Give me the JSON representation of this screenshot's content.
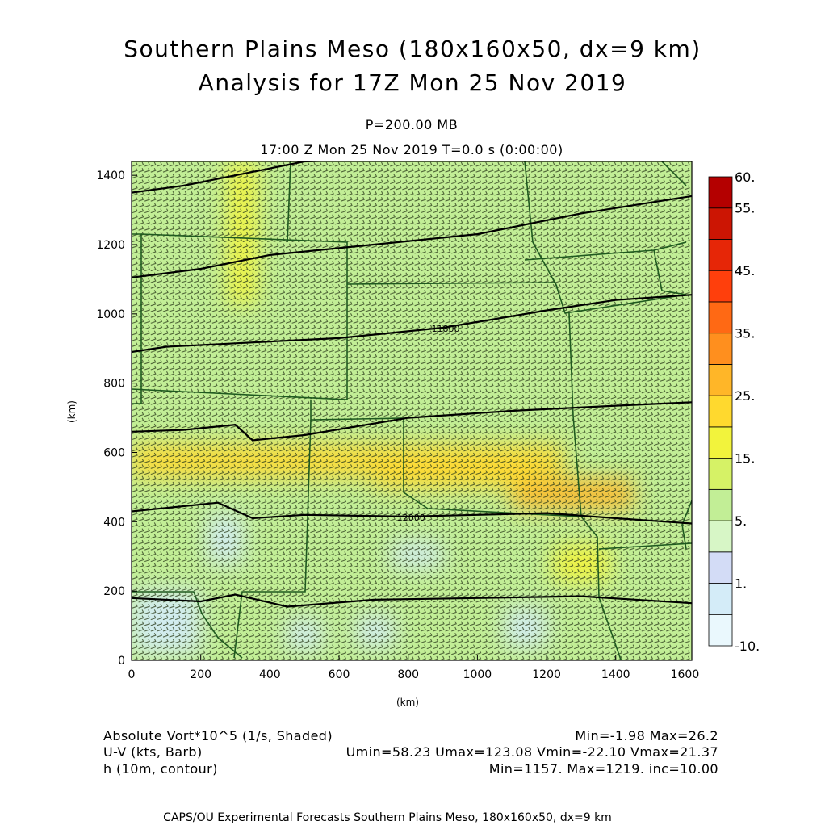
{
  "header": {
    "title_line1": "Southern Plains Meso (180x160x50, dx=9 km)",
    "title_line2": "Analysis for 17Z Mon 25 Nov 2019",
    "level": "P=200.00 MB",
    "valid_time": "17:00 Z Mon 25 Nov 2019    T=0.0 s (0:00:00)"
  },
  "chart_data": {
    "type": "heatmap",
    "xlabel": "(km)",
    "ylabel": "(km)",
    "xlim": [
      0,
      1620
    ],
    "ylim": [
      0,
      1440
    ],
    "xticks": [
      0,
      200,
      400,
      600,
      800,
      1000,
      1200,
      1400,
      1600
    ],
    "yticks": [
      0,
      200,
      400,
      600,
      800,
      1000,
      1200,
      1400
    ],
    "colorbar": {
      "levels": [
        "-10.",
        "",
        "1.",
        "",
        "5.",
        "",
        "15.",
        "",
        "25.",
        "",
        "35.",
        "",
        "45.",
        "",
        "55.",
        "60."
      ],
      "colors": [
        "#eaf8fd",
        "#d4ecf8",
        "#d3dcf6",
        "#d7f6c6",
        "#c2ee96",
        "#d6f266",
        "#f2f33c",
        "#ffd92e",
        "#ffb628",
        "#ff8f1e",
        "#ff6914",
        "#ff3f0c",
        "#e62607",
        "#cc1503",
        "#b40000"
      ]
    },
    "vorticity_field": {
      "description": "Absolute vorticity x10^5, shaded",
      "background": 9,
      "features": [
        {
          "type": "band",
          "x": [
            0,
            1250
          ],
          "y": [
            530,
            620
          ],
          "value": 24
        },
        {
          "type": "band",
          "x": [
            1100,
            1450
          ],
          "y": [
            440,
            520
          ],
          "value": 26
        },
        {
          "type": "band",
          "x": [
            700,
            1150
          ],
          "y": [
            500,
            560
          ],
          "value": 20
        },
        {
          "type": "band",
          "x": [
            280,
            360
          ],
          "y": [
            1030,
            1440
          ],
          "value": 15
        },
        {
          "type": "band",
          "x": [
            1220,
            1380
          ],
          "y": [
            230,
            330
          ],
          "value": 19
        },
        {
          "type": "low",
          "x": [
            0,
            200
          ],
          "y": [
            20,
            200
          ],
          "value": 0
        },
        {
          "type": "low",
          "x": [
            220,
            320
          ],
          "y": [
            280,
            420
          ],
          "value": 0
        },
        {
          "type": "low",
          "x": [
            450,
            550
          ],
          "y": [
            30,
            120
          ],
          "value": 0
        },
        {
          "type": "low",
          "x": [
            650,
            760
          ],
          "y": [
            40,
            130
          ],
          "value": 0
        },
        {
          "type": "low",
          "x": [
            1080,
            1200
          ],
          "y": [
            40,
            150
          ],
          "value": 0
        },
        {
          "type": "low",
          "x": [
            750,
            900
          ],
          "y": [
            270,
            340
          ],
          "value": 0
        }
      ]
    },
    "height_contours": [
      {
        "label": "11800",
        "x": [
          0,
          100,
          300,
          600,
          900,
          1200,
          1400,
          1620
        ],
        "y": [
          890,
          905,
          915,
          930,
          960,
          1010,
          1040,
          1055
        ]
      },
      {
        "label": "12000",
        "x": [
          0,
          100,
          250,
          350,
          500,
          800,
          1000,
          1200,
          1400,
          1620
        ],
        "y": [
          430,
          440,
          455,
          410,
          420,
          415,
          420,
          425,
          410,
          395
        ]
      },
      {
        "label": "",
        "x": [
          0,
          200,
          400,
          700,
          1000,
          1300,
          1620
        ],
        "y": [
          1105,
          1130,
          1170,
          1200,
          1230,
          1290,
          1340
        ]
      },
      {
        "label": "",
        "x": [
          0,
          150,
          300,
          500,
          800,
          1100,
          1400,
          1620
        ],
        "y": [
          1350,
          1370,
          1400,
          1440,
          1450,
          1450,
          1450,
          1450
        ]
      },
      {
        "label": "",
        "x": [
          0,
          150,
          300,
          350,
          500,
          800,
          1100,
          1400,
          1620
        ],
        "y": [
          660,
          665,
          680,
          635,
          650,
          700,
          720,
          735,
          745
        ]
      },
      {
        "label": "",
        "x": [
          0,
          200,
          300,
          450,
          700,
          1000,
          1300,
          1620
        ],
        "y": [
          180,
          170,
          190,
          155,
          175,
          180,
          185,
          165
        ]
      }
    ],
    "wind": {
      "u_range": [
        58.23,
        123.08
      ],
      "v_range": [
        -22.1,
        21.37
      ]
    }
  },
  "footer": {
    "left": [
      "Absolute Vort*10^5 (1/s, Shaded)",
      "U-V (kts, Barb)",
      "h (10m, contour)"
    ],
    "right": [
      "Min=-1.98 Max=26.2",
      "Umin=58.23 Umax=123.08 Vmin=-22.10 Vmax=21.37",
      "Min=1157. Max=1219. inc=10.00"
    ],
    "credit": "CAPS/OU Experimental Forecasts  Southern Plains Meso, 180x160x50, dx=9 km"
  }
}
